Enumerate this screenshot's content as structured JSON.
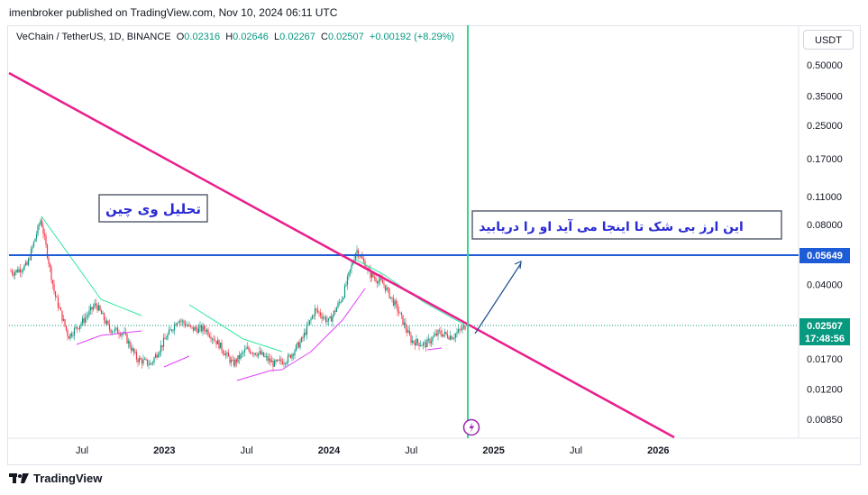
{
  "header": {
    "publisher": "imenbroker published on TradingView.com, Nov 10, 2024 06:11 UTC"
  },
  "legend": {
    "symbol": "VeChain / TetherUS, 1D, BINANCE",
    "open_label": "O",
    "open": "0.02316",
    "high_label": "H",
    "high": "0.02646",
    "low_label": "L",
    "low": "0.02267",
    "close_label": "C",
    "close": "0.02507",
    "change": "+0.00192 (+8.29%)"
  },
  "currency_button": "USDT",
  "footer": {
    "brand": "TradingView"
  },
  "annotations": {
    "title_box": "تحلیل وی چین",
    "target_box": "این ارز بی شک تا اینجا می آید  او را دریابید"
  },
  "price_badges": {
    "level": "0.05649",
    "last": "0.02507",
    "countdown": "17:48:56"
  },
  "colors": {
    "up": "#089981",
    "down": "#f23645",
    "trendline": "#e91e8c",
    "horizontal": "#1e5bd6",
    "vertical": "#36d68c",
    "upper_swing": "#2ee89a",
    "lower_swing": "#e040fb",
    "arrow": "#1e4f8c"
  },
  "chart_data": {
    "type": "candlestick",
    "y_scale": "log",
    "y_ticks": [
      "0.50000",
      "0.35000",
      "0.25000",
      "0.17000",
      "0.11000",
      "0.08000",
      "0.04000",
      "0.01700",
      "0.01200",
      "0.00850"
    ],
    "x_ticks": [
      "Jul",
      "2023",
      "Jul",
      "2024",
      "Jul",
      "2025",
      "Jul",
      "2026"
    ],
    "horizontal_level": 0.05649,
    "last_price": 0.02507,
    "trendline": {
      "from": [
        "2022-02",
        0.42
      ],
      "to": [
        "2026-01",
        0.008
      ]
    },
    "price_path": [
      [
        "2022-01",
        0.05
      ],
      [
        "2022-02",
        0.046
      ],
      [
        "2022-03",
        0.05
      ],
      [
        "2022-04",
        0.085
      ],
      [
        "2022-05",
        0.036
      ],
      [
        "2022-06",
        0.022
      ],
      [
        "2022-07",
        0.026
      ],
      [
        "2022-08",
        0.032
      ],
      [
        "2022-09",
        0.024
      ],
      [
        "2022-10",
        0.023
      ],
      [
        "2022-11",
        0.017
      ],
      [
        "2022-12",
        0.016
      ],
      [
        "2023-01",
        0.021
      ],
      [
        "2023-02",
        0.027
      ],
      [
        "2023-03",
        0.024
      ],
      [
        "2023-04",
        0.024
      ],
      [
        "2023-05",
        0.02
      ],
      [
        "2023-06",
        0.016
      ],
      [
        "2023-07",
        0.019
      ],
      [
        "2023-08",
        0.018
      ],
      [
        "2023-09",
        0.016
      ],
      [
        "2023-10",
        0.017
      ],
      [
        "2023-11",
        0.021
      ],
      [
        "2023-12",
        0.03
      ],
      [
        "2024-01",
        0.026
      ],
      [
        "2024-02",
        0.035
      ],
      [
        "2024-03",
        0.06
      ],
      [
        "2024-04",
        0.045
      ],
      [
        "2024-05",
        0.04
      ],
      [
        "2024-06",
        0.03
      ],
      [
        "2024-07",
        0.021
      ],
      [
        "2024-08",
        0.02
      ],
      [
        "2024-09",
        0.023
      ],
      [
        "2024-10",
        0.022
      ],
      [
        "2024-11",
        0.025
      ]
    ]
  }
}
